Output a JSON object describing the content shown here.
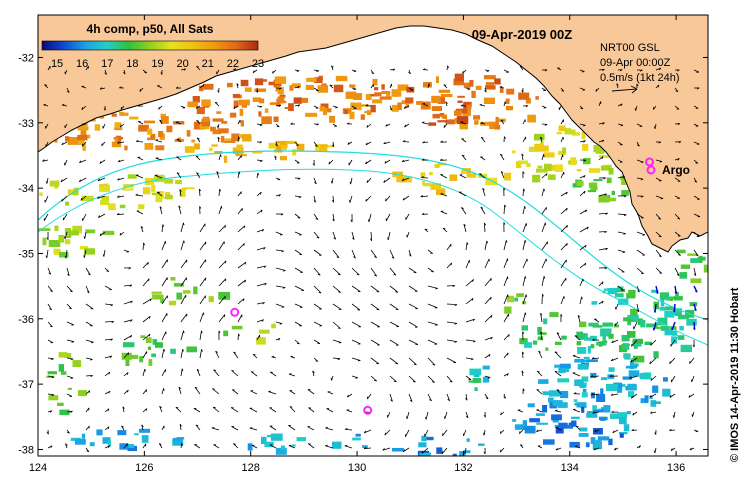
{
  "title": "09-Apr-2019 00Z",
  "colorbar": {
    "title": "4h comp, p50, All Sats",
    "ticks": [
      "15",
      "16",
      "17",
      "18",
      "19",
      "20",
      "21",
      "22",
      "23"
    ],
    "min": 14.4,
    "max": 23.0
  },
  "info": {
    "line1": "NRT00 GSL",
    "line2": "09-Apr 00:00Z",
    "line3": "0.5m/s (1kt 24h)"
  },
  "argo_label": "Argo",
  "credit": "© IMOS 14-Apr-2019 11:30 Hobart",
  "axes": {
    "x_ticks": [
      "124",
      "126",
      "128",
      "130",
      "132",
      "134",
      "136"
    ],
    "y_ticks": [
      "-32",
      "-33",
      "-34",
      "-35",
      "-36",
      "-37",
      "-38"
    ],
    "lon_range": [
      124,
      136.6
    ],
    "lat_range": [
      -38.1,
      -31.35
    ]
  },
  "argo_floats": [
    {
      "lon": 135.5,
      "lat": -33.6
    },
    {
      "lon": 127.7,
      "lat": -35.9
    },
    {
      "lon": 130.2,
      "lat": -37.4
    }
  ],
  "colors": {
    "land": "#f8c898",
    "cyan_track": "#22dddd",
    "argo": "#ff22ff",
    "vector": "#000000",
    "vector_blue": "#0000cc"
  }
}
